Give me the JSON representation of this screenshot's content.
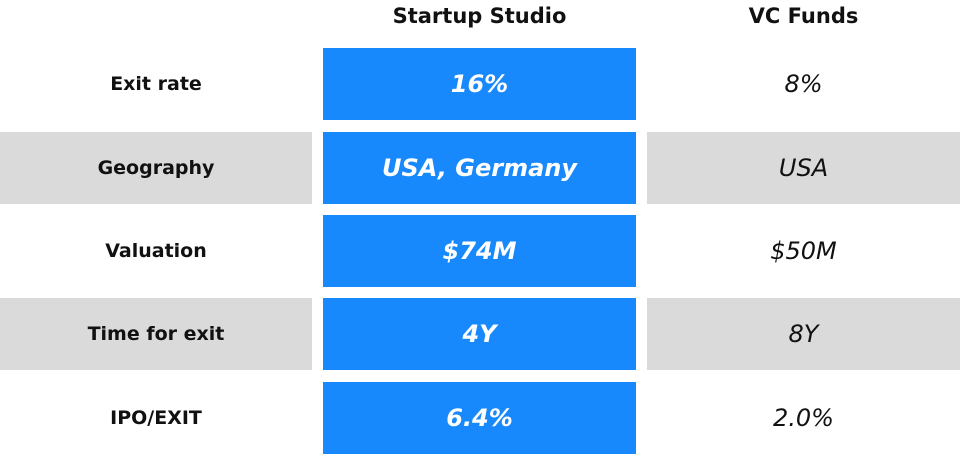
{
  "table": {
    "headers": [
      "Startup Studio",
      "VC Funds"
    ],
    "rows": [
      [
        "Exit rate",
        "16%",
        "8%"
      ],
      [
        "Geography",
        "USA, Germany",
        "USA"
      ],
      [
        "Valuation",
        "$74M",
        "$50M"
      ],
      [
        "Time for exit",
        "4Y",
        "8Y"
      ],
      [
        "IPO/EXIT",
        "6.4%",
        "2.0%"
      ]
    ]
  }
}
